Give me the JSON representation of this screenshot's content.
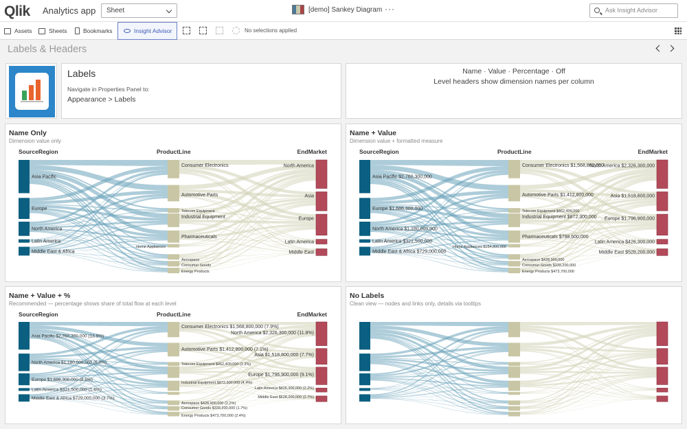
{
  "app": {
    "logo": "Qlik",
    "title": "Analytics app",
    "sheet_selector": "Sheet",
    "document_title": "[demo] Sankey Diagram",
    "more": "···",
    "search_placeholder": "Ask Insight Advisor"
  },
  "toolbar": {
    "assets": "Assets",
    "sheets": "Sheets",
    "bookmarks": "Bookmarks",
    "insight_advisor": "Insight Advisor",
    "no_selections": "No selections applied"
  },
  "sheet": {
    "title": "Labels & Headers"
  },
  "intro": {
    "title": "Labels",
    "nav_hint": "Navigate in Properties Panel to:",
    "path": "Appearance > Labels",
    "options_line": "Name · Value · Percentage · Off",
    "headers_line": "Level headers show dimension names per column"
  },
  "colors": {
    "source": "#0b5f80",
    "product": "#c8c6a4",
    "market": "#b24a5a",
    "link_source": "#6aa3b9",
    "link_product": "#d6d5bc"
  },
  "chart_data": [
    {
      "type": "sankey",
      "title": "Name Only",
      "subtitle": "Dimension value only",
      "label_mode": "name",
      "headers": [
        "SourceRegion",
        "ProductLine",
        "EndMarket"
      ],
      "source_labels": [
        "Asia Pacific",
        "Europe",
        "North America",
        "Latin America",
        "Middle East & Africa"
      ],
      "product_labels": [
        "Consumer Electronics",
        "Automotive Parts",
        "Telecom Equipment",
        "Industrial Equipment",
        "Pharmaceuticals",
        "Home Appliances",
        "Aerospace",
        "Consumer Goods",
        "Energy Products"
      ],
      "market_labels": [
        "North America",
        "Asia",
        "Europe",
        "Latin America",
        "Middle East"
      ]
    },
    {
      "type": "sankey",
      "title": "Name + Value",
      "subtitle": "Dimension value + formatted measure",
      "label_mode": "name_value",
      "headers": [
        "SourceRegion",
        "ProductLine",
        "EndMarket"
      ],
      "source_labels": [
        "Asia Pacific $2,760,300,000",
        "Europe $1,686,300,000",
        "North America $1,180,000,000",
        "Latin America $321,500,000",
        "Middle East & Africa $729,000,000"
      ],
      "product_labels": [
        "Consumer Electronics $1,568,800,000",
        "Automotive Parts $1,412,800,000",
        "Telecom Equipment $462,400,000",
        "Industrial Equipment $872,300,000",
        "Pharmaceuticals $798,600,000",
        "Home Appliances $154,800,000",
        "Aerospace $428,900,000",
        "Consumer Goods $339,200,000",
        "Energy Products $473,700,000"
      ],
      "market_labels": [
        "North America $2,326,300,000",
        "Asia $1,518,800,000",
        "Europe $1,796,900,000",
        "Latin America $426,300,000",
        "Middle East $528,200,000"
      ]
    },
    {
      "type": "sankey",
      "title": "Name + Value + %",
      "subtitle": "Recommended — percentage shows share of total flow at each level",
      "label_mode": "name_value_pct",
      "headers": [
        "SourceRegion",
        "ProductLine",
        "EndMarket"
      ],
      "source_labels": [
        "Asia Pacific $2,760,300,000 (13.9%)",
        "North America $1,180,000,000 (6.0%)",
        "Europe $1,686,300,000 (8.5%)",
        "Latin America $321,500,000 (1.6%)",
        "Middle East & Africa $729,000,000 (3.7%)"
      ],
      "product_labels": [
        "Consumer Electronics $1,568,800,000 (7.9%)",
        "Automotive Parts $1,412,800,000 (7.1%)",
        "Telecom Equipment $462,400,000 (2.3%)",
        "Industrial Equipment $872,300,000 (4.4%)",
        "Aerospace $428,900,000 (2.2%)",
        "Consumer Goods $339,200,000 (1.7%)",
        "Energy Products $473,700,000 (2.4%)"
      ],
      "market_labels": [
        "North America $2,326,300,000 (11.8%)",
        "Asia $1,518,800,000 (7.7%)",
        "Europe $1,796,900,000 (9.1%)",
        "Latin America $426,300,000 (2.2%)",
        "Middle East $528,200,000 (2.7%)"
      ]
    },
    {
      "type": "sankey",
      "title": "No Labels",
      "subtitle": "Clean view — nodes and links only, details via tooltips",
      "label_mode": "off",
      "headers": [],
      "source_labels": [],
      "product_labels": [],
      "market_labels": []
    }
  ]
}
